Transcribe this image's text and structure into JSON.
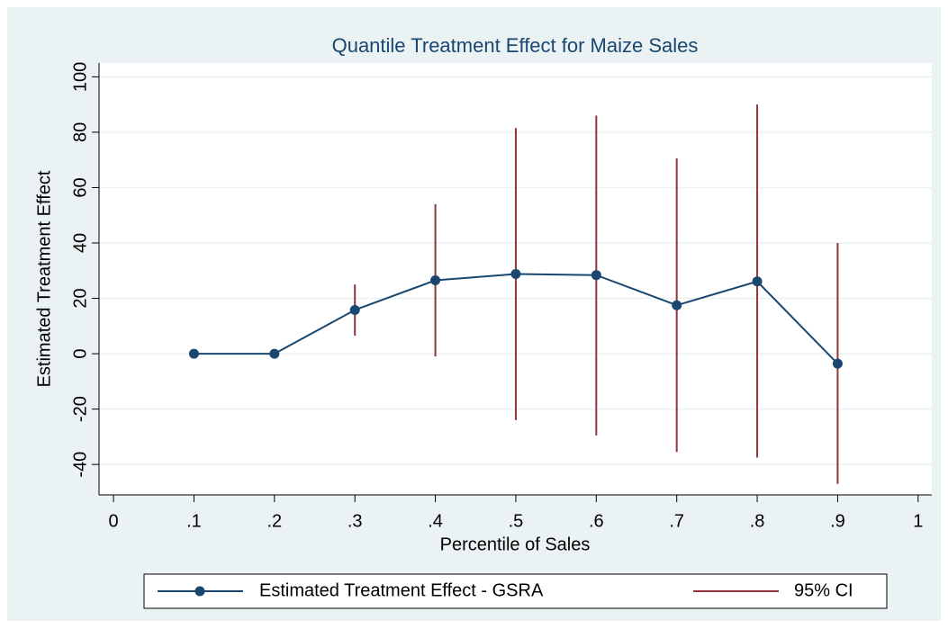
{
  "chart_data": {
    "type": "line",
    "title": "Quantile Treatment Effect for Maize Sales",
    "xlabel": "Percentile of Sales",
    "ylabel": "Estimated Treatment Effect",
    "x": [
      0.1,
      0.2,
      0.3,
      0.4,
      0.5,
      0.6,
      0.7,
      0.8,
      0.9
    ],
    "series": [
      {
        "name": "Estimated Treatment Effect - GSRA",
        "color": "#1a476f",
        "values": [
          0,
          0,
          15.8,
          26.5,
          28.8,
          28.4,
          17.5,
          26.1,
          -3.6
        ]
      }
    ],
    "ci": {
      "name": "95% CI",
      "color": "#90353b",
      "lower": [
        null,
        null,
        6.5,
        -1,
        -24,
        -29.5,
        -35.5,
        -37.5,
        -47
      ],
      "upper": [
        null,
        null,
        25,
        54,
        81.5,
        86,
        70.5,
        90,
        40
      ]
    },
    "xlim": [
      -0.018,
      1.017
    ],
    "ylim": [
      -51,
      105
    ],
    "xticks": [
      0,
      {
        "value": 0.1,
        "label": ".1"
      },
      {
        "value": 0.2,
        "label": ".2"
      },
      {
        "value": 0.3,
        "label": ".3"
      },
      {
        "value": 0.4,
        "label": ".4"
      },
      {
        "value": 0.5,
        "label": ".5"
      },
      {
        "value": 0.6,
        "label": ".6"
      },
      {
        "value": 0.7,
        "label": ".7"
      },
      {
        "value": 0.8,
        "label": ".8"
      },
      {
        "value": 0.9,
        "label": ".9"
      },
      1
    ],
    "yticks": [
      -40,
      -20,
      0,
      20,
      40,
      60,
      80,
      100
    ],
    "grid": true
  }
}
